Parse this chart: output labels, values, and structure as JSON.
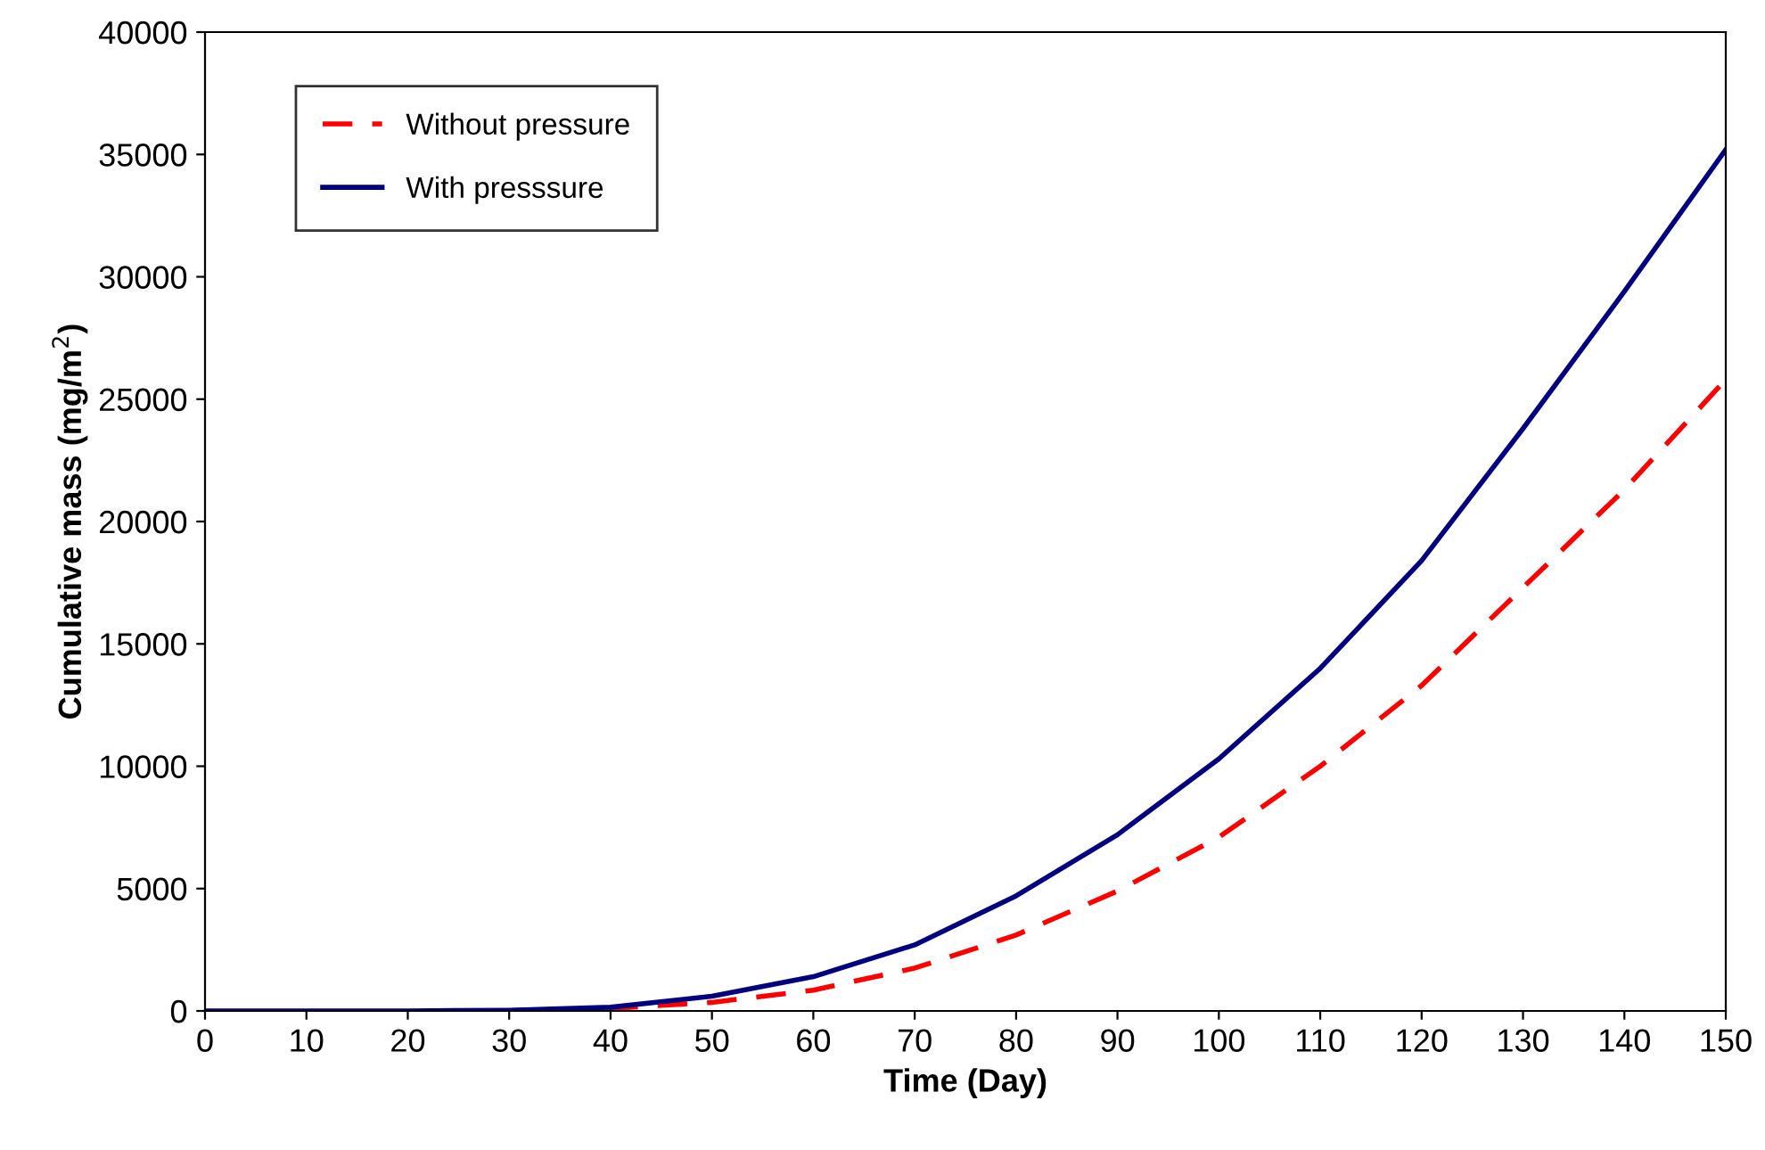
{
  "chart_data": {
    "type": "line",
    "xlabel": "Time (Day)",
    "ylabel": "Cumulative mass (mg/m$^{2}$)",
    "x": [
      0,
      10,
      20,
      30,
      40,
      50,
      60,
      70,
      80,
      90,
      100,
      110,
      120,
      130,
      140,
      150
    ],
    "series": [
      {
        "name": "Without pressure",
        "color": "#ff0000",
        "line_style": "dashed",
        "values": [
          null,
          null,
          null,
          10,
          100,
          350,
          850,
          1750,
          3100,
          4900,
          7100,
          10000,
          13300,
          17300,
          21300,
          25800
        ]
      },
      {
        "name": "With presssure",
        "color": "#000080",
        "line_style": "solid",
        "values": [
          0,
          0,
          0,
          30,
          150,
          600,
          1400,
          2700,
          4700,
          7200,
          10300,
          14000,
          18400,
          23800,
          29400,
          35200
        ]
      }
    ],
    "xlim": [
      0,
      150
    ],
    "xticks": [
      0,
      10,
      20,
      30,
      40,
      50,
      60,
      70,
      80,
      90,
      100,
      110,
      120,
      130,
      140,
      150
    ],
    "ylim": [
      0,
      40000
    ],
    "yticks": [
      0,
      5000,
      10000,
      15000,
      20000,
      25000,
      30000,
      35000,
      40000
    ],
    "grid": false,
    "legend": "top left",
    "marker": "none"
  }
}
